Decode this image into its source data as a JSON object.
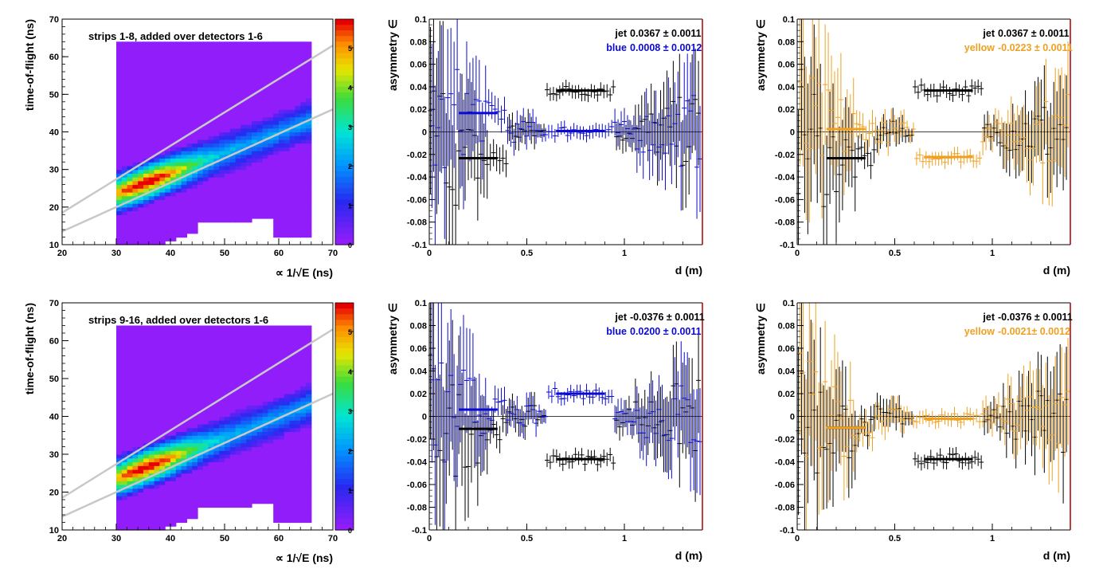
{
  "colors": {
    "jet": "#000000",
    "blue": "#0a0ad2",
    "yellow": "#f0a020",
    "frame_right": "#aa0000",
    "band_line": "#c8c8c8"
  },
  "chart_data": [
    {
      "id": "tof1",
      "type": "heatmap",
      "title": "strips 1-8, added over detectors 1-6",
      "xlabel": "∝ 1/√E (ns)",
      "ylabel": "time-of-flight (ns)",
      "xlim": [
        20,
        70
      ],
      "ylim": [
        10,
        70
      ],
      "xticks": [
        "20",
        "30",
        "40",
        "50",
        "60",
        "70"
      ],
      "yticks": [
        "10",
        "20",
        "30",
        "40",
        "50",
        "60",
        "70"
      ],
      "colorbar_ticks": [
        "5",
        "4",
        "3",
        "2",
        "1",
        "0"
      ],
      "band_lines": [
        [
          [
            20,
            18.5
          ],
          [
            70,
            63
          ]
        ],
        [
          [
            20,
            13.5
          ],
          [
            70,
            46
          ]
        ]
      ],
      "fill_xlim": [
        30,
        66
      ],
      "peak": [
        35,
        27
      ]
    },
    {
      "id": "asym1b",
      "type": "scatter",
      "xlabel": "d (m)",
      "ylabel": "asymmetry ∈",
      "xlim": [
        0,
        1.4
      ],
      "ylim": [
        -0.1,
        0.1
      ],
      "xticks": [
        "0",
        "0.5",
        "1"
      ],
      "yticks": [
        "0.1",
        "0.08",
        "0.06",
        "0.04",
        "0.02",
        "0",
        "-0.02",
        "-0.04",
        "-0.06",
        "-0.08",
        "-0.1"
      ],
      "legend": [
        {
          "label": "jet",
          "value": "0.0367 ± 0.0011",
          "color": "jet"
        },
        {
          "label": "blue",
          "value": "0.0008 ± 0.0012",
          "color": "blue"
        }
      ],
      "fits": [
        {
          "series": "jet",
          "ranges": [
            [
              0.15,
              0.35,
              -0.0233
            ],
            [
              0.65,
              0.9,
              0.0367
            ]
          ]
        },
        {
          "series": "blue",
          "ranges": [
            [
              0.15,
              0.35,
              0.0167
            ],
            [
              0.65,
              0.9,
              0.0008
            ]
          ]
        }
      ]
    },
    {
      "id": "asym1y",
      "type": "scatter",
      "xlabel": "d (m)",
      "ylabel": "asymmetry ∈",
      "xlim": [
        0,
        1.4
      ],
      "ylim": [
        -0.1,
        0.1
      ],
      "xticks": [
        "0",
        "0.5",
        "1"
      ],
      "yticks": [
        "0.1",
        "0.08",
        "0.06",
        "0.04",
        "0.02",
        "0",
        "-0.02",
        "-0.04",
        "-0.06",
        "-0.08",
        "-0.1"
      ],
      "legend": [
        {
          "label": "jet",
          "value": "0.0367 ± 0.0011",
          "color": "jet"
        },
        {
          "label": "yellow",
          "value": "-0.0223 ± 0.0011",
          "color": "yellow"
        }
      ],
      "fits": [
        {
          "series": "jet",
          "ranges": [
            [
              0.15,
              0.35,
              -0.0233
            ],
            [
              0.65,
              0.9,
              0.0367
            ]
          ]
        },
        {
          "series": "yellow",
          "ranges": [
            [
              0.15,
              0.35,
              0.0025
            ],
            [
              0.65,
              0.9,
              -0.0223
            ]
          ]
        }
      ]
    },
    {
      "id": "tof2",
      "type": "heatmap",
      "title": "strips 9-16, added over detectors 1-6",
      "xlabel": "∝ 1/√E (ns)",
      "ylabel": "time-of-flight (ns)",
      "xlim": [
        20,
        70
      ],
      "ylim": [
        10,
        70
      ],
      "xticks": [
        "20",
        "30",
        "40",
        "50",
        "60",
        "70"
      ],
      "yticks": [
        "10",
        "20",
        "30",
        "40",
        "50",
        "60",
        "70"
      ],
      "colorbar_ticks": [
        "5",
        "4",
        "3",
        "2",
        "1",
        "0"
      ],
      "band_lines": [
        [
          [
            20,
            18.5
          ],
          [
            70,
            63
          ]
        ],
        [
          [
            20,
            13.5
          ],
          [
            70,
            46
          ]
        ]
      ],
      "fill_xlim": [
        30,
        66
      ],
      "peak": [
        35,
        27
      ]
    },
    {
      "id": "asym2b",
      "type": "scatter",
      "xlabel": "d (m)",
      "ylabel": "asymmetry ∈",
      "xlim": [
        0,
        1.4
      ],
      "ylim": [
        -0.1,
        0.1
      ],
      "xticks": [
        "0",
        "0.5",
        "1"
      ],
      "yticks": [
        "0.1",
        "0.08",
        "0.06",
        "0.04",
        "0.02",
        "0",
        "-0.02",
        "-0.04",
        "-0.06",
        "-0.08",
        "-0.1"
      ],
      "legend": [
        {
          "label": "jet",
          "value": "-0.0376 ± 0.0011",
          "color": "jet"
        },
        {
          "label": "blue",
          "value": "0.0200 ± 0.0011",
          "color": "blue"
        }
      ],
      "fits": [
        {
          "series": "jet",
          "ranges": [
            [
              0.15,
              0.35,
              -0.011
            ],
            [
              0.65,
              0.9,
              -0.0376
            ]
          ]
        },
        {
          "series": "blue",
          "ranges": [
            [
              0.15,
              0.35,
              0.006
            ],
            [
              0.65,
              0.9,
              0.02
            ]
          ]
        }
      ]
    },
    {
      "id": "asym2y",
      "type": "scatter",
      "xlabel": "d (m)",
      "ylabel": "asymmetry ∈",
      "xlim": [
        0,
        1.4
      ],
      "ylim": [
        -0.1,
        0.1
      ],
      "xticks": [
        "0",
        "0.5",
        "1"
      ],
      "yticks": [
        "0.1",
        "0.08",
        "0.06",
        "0.04",
        "0.02",
        "0",
        "-0.02",
        "-0.04",
        "-0.06",
        "-0.08",
        "-0.1"
      ],
      "legend": [
        {
          "label": "jet",
          "value": "-0.0376 ± 0.0011",
          "color": "jet"
        },
        {
          "label": "yellow",
          "value": "-0.0021± 0.0012",
          "color": "yellow"
        }
      ],
      "fits": [
        {
          "series": "jet",
          "ranges": [
            [
              0.15,
              0.35,
              -0.01
            ],
            [
              0.65,
              0.9,
              -0.0376
            ]
          ]
        },
        {
          "series": "yellow",
          "ranges": [
            [
              0.15,
              0.35,
              -0.01
            ],
            [
              0.65,
              0.9,
              -0.0021
            ]
          ]
        }
      ]
    }
  ]
}
